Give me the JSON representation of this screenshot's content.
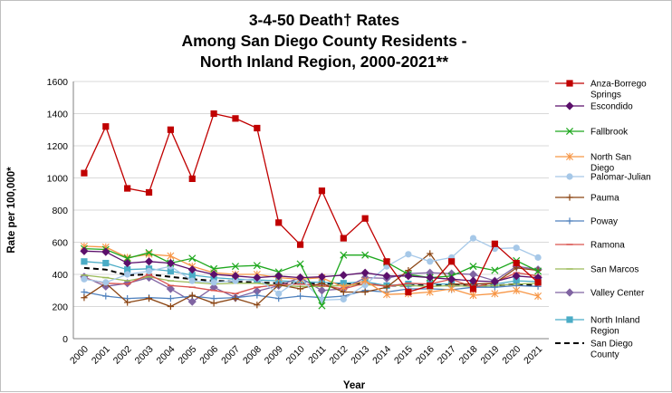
{
  "chart_data": {
    "type": "line",
    "title_lines": [
      "3-4-50 Death† Rates",
      "Among San Diego County Residents -",
      "North Inland Region, 2000-2021**"
    ],
    "xlabel": "Year",
    "ylabel": "Rate per 100,000*",
    "ylim": [
      0,
      1600
    ],
    "yticks": [
      0,
      200,
      400,
      600,
      800,
      1000,
      1200,
      1400,
      1600
    ],
    "grid": true,
    "legend_position": "right",
    "categories": [
      "2000",
      "2001",
      "2002",
      "2003",
      "2004",
      "2005",
      "2006",
      "2007",
      "2008",
      "2009",
      "2010",
      "2011",
      "2012",
      "2013",
      "2014",
      "2015",
      "2016",
      "2017",
      "2018",
      "2019",
      "2020",
      "2021"
    ],
    "series": [
      {
        "name": "Anza-Borrego Springs",
        "legend_lines": [
          "Anza-Borrego",
          "Springs"
        ],
        "color": "#c00000",
        "marker": "square",
        "dash": "",
        "values": [
          1030,
          1320,
          935,
          910,
          1300,
          995,
          1400,
          1370,
          1310,
          722,
          585,
          920,
          625,
          748,
          480,
          290,
          330,
          480,
          310,
          590,
          470,
          350
        ]
      },
      {
        "name": "Escondido",
        "legend_lines": [
          "Escondido"
        ],
        "color": "#5b0f6b",
        "marker": "diamond",
        "dash": "",
        "values": [
          545,
          540,
          470,
          480,
          470,
          430,
          400,
          390,
          380,
          390,
          380,
          385,
          395,
          410,
          390,
          390,
          380,
          370,
          360,
          355,
          390,
          380
        ]
      },
      {
        "name": "Fallbrook",
        "legend_lines": [
          "Fallbrook"
        ],
        "color": "#1ea81e",
        "marker": "x",
        "dash": "",
        "values": [
          560,
          555,
          500,
          535,
          470,
          500,
          435,
          450,
          455,
          415,
          465,
          205,
          520,
          520,
          475,
          400,
          380,
          390,
          450,
          425,
          485,
          420
        ]
      },
      {
        "name": "North San Diego",
        "legend_lines": [
          "North San",
          "Diego"
        ],
        "color": "#f79646",
        "marker": "star",
        "dash": "",
        "values": [
          575,
          570,
          505,
          525,
          515,
          450,
          410,
          400,
          400,
          380,
          370,
          380,
          320,
          360,
          275,
          280,
          290,
          310,
          270,
          280,
          300,
          265
        ]
      },
      {
        "name": "Palomar-Julian",
        "legend_lines": [
          "Palomar-Julian"
        ],
        "color": "#a6c8e8",
        "marker": "circle",
        "dash": "",
        "values": [
          370,
          350,
          400,
          420,
          450,
          360,
          350,
          360,
          375,
          280,
          375,
          240,
          245,
          335,
          450,
          525,
          480,
          505,
          625,
          560,
          565,
          505
        ]
      },
      {
        "name": "Pauma",
        "legend_lines": [
          "Pauma"
        ],
        "color": "#8b4513",
        "marker": "plus",
        "dash": "",
        "values": [
          255,
          345,
          225,
          250,
          200,
          270,
          220,
          250,
          210,
          335,
          310,
          345,
          290,
          290,
          320,
          425,
          530,
          340,
          340,
          345,
          440,
          425
        ]
      },
      {
        "name": "Poway",
        "legend_lines": [
          "Poway"
        ],
        "color": "#4f81bd",
        "marker": "plus",
        "dash": "",
        "values": [
          290,
          265,
          250,
          255,
          250,
          265,
          250,
          255,
          270,
          250,
          265,
          255,
          265,
          300,
          290,
          310,
          310,
          305,
          320,
          320,
          330,
          325
        ]
      },
      {
        "name": "Ramona",
        "legend_lines": [
          "Ramona"
        ],
        "color": "#d9534f",
        "marker": "dash",
        "dash": "",
        "values": [
          375,
          345,
          340,
          400,
          330,
          320,
          300,
          280,
          320,
          335,
          340,
          330,
          310,
          345,
          325,
          345,
          340,
          370,
          320,
          350,
          410,
          390
        ]
      },
      {
        "name": "San Marcos",
        "legend_lines": [
          "San Marcos"
        ],
        "color": "#9bbb59",
        "marker": "dash",
        "dash": "",
        "values": [
          395,
          380,
          360,
          385,
          360,
          350,
          340,
          345,
          345,
          330,
          325,
          325,
          330,
          335,
          330,
          330,
          325,
          330,
          325,
          330,
          340,
          345
        ]
      },
      {
        "name": "Valley Center",
        "legend_lines": [
          "Valley Center"
        ],
        "color": "#8064a2",
        "marker": "diamond",
        "dash": "",
        "values": [
          385,
          325,
          345,
          380,
          310,
          230,
          320,
          255,
          295,
          330,
          380,
          300,
          310,
          380,
          375,
          405,
          410,
          405,
          400,
          360,
          450,
          430
        ]
      },
      {
        "name": "North Inland Region",
        "legend_lines": [
          "North Inland",
          "Region"
        ],
        "color": "#4bacc6",
        "marker": "square",
        "dash": "",
        "values": [
          480,
          470,
          430,
          435,
          420,
          395,
          380,
          370,
          365,
          360,
          355,
          350,
          345,
          355,
          330,
          340,
          340,
          340,
          340,
          340,
          360,
          355
        ]
      },
      {
        "name": "San Diego County",
        "legend_lines": [
          "San Diego",
          "County"
        ],
        "color": "#000000",
        "marker": "none",
        "dash": "6,4",
        "values": [
          440,
          430,
          395,
          400,
          385,
          370,
          360,
          355,
          350,
          345,
          345,
          340,
          345,
          340,
          330,
          330,
          335,
          330,
          330,
          330,
          340,
          330
        ]
      }
    ]
  }
}
